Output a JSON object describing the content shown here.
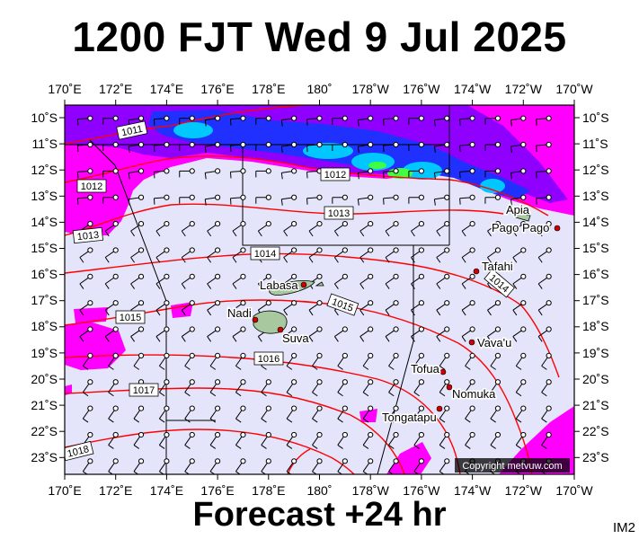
{
  "title": "1200 FJT Wed 9 Jul 2025",
  "footer": "Forecast +24 hr",
  "product_code": "IM2",
  "copyright": "Copyright metvuw.com",
  "colors": {
    "background": "#e4e4fa",
    "isobar": "#ff0000",
    "rain_light": "#ff00ff",
    "rain_moderate": "#9000ff",
    "rain_heavy": "#2030ff",
    "rain_very_heavy": "#00c8ff",
    "rain_extreme": "#40ff40",
    "land": "#90c090"
  },
  "map": {
    "longitudes": [
      "170˚E",
      "172˚E",
      "174˚E",
      "176˚E",
      "178˚E",
      "180˚",
      "178˚W",
      "176˚W",
      "174˚W",
      "172˚W",
      "170˚W"
    ],
    "latitudes": [
      "10˚S",
      "11˚S",
      "12˚S",
      "13˚S",
      "14˚S",
      "15˚S",
      "16˚S",
      "17˚S",
      "18˚S",
      "19˚S",
      "20˚S",
      "21˚S",
      "22˚S",
      "23˚S"
    ],
    "isobar_labels": [
      {
        "text": "1011"
      },
      {
        "text": "1012"
      },
      {
        "text": "1012"
      },
      {
        "text": "1013"
      },
      {
        "text": "1013"
      },
      {
        "text": "1014"
      },
      {
        "text": "1014"
      },
      {
        "text": "1015"
      },
      {
        "text": "1015"
      },
      {
        "text": "1016"
      },
      {
        "text": "1017"
      },
      {
        "text": "1018"
      }
    ],
    "places": [
      {
        "name": "Apia"
      },
      {
        "name": "Pago Pago"
      },
      {
        "name": "Tafahi"
      },
      {
        "name": "Labasa"
      },
      {
        "name": "Nadi"
      },
      {
        "name": "Suva"
      },
      {
        "name": "Vava'u"
      },
      {
        "name": "Tofua"
      },
      {
        "name": "Nomuka"
      },
      {
        "name": "Tongatapu"
      }
    ]
  }
}
